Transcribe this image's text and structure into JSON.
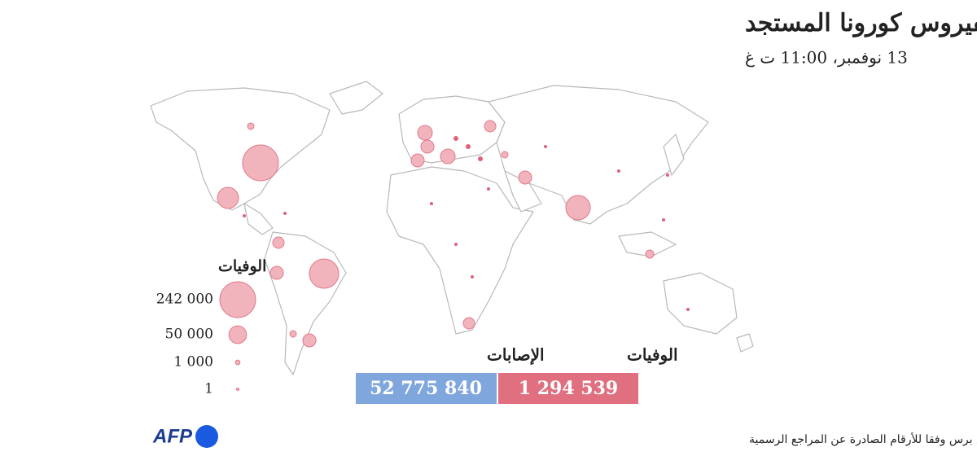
{
  "header": {
    "title": "الحصيلة العالمية لفيروس كورونا المستجد",
    "subtitle": "13 نوفمبر، 11:00 ت غ"
  },
  "legend": {
    "title": "الوفيات",
    "items": [
      {
        "value": 242000,
        "label": "242 000"
      },
      {
        "value": 50000,
        "label": "50 000"
      },
      {
        "value": 1000,
        "label": "1 000"
      },
      {
        "value": 1,
        "label": "1"
      }
    ]
  },
  "totals": {
    "deaths": {
      "label": "الوفيات",
      "value": "1 294 539"
    },
    "cases": {
      "label": "الإصابات",
      "value": "52 775 840"
    }
  },
  "footer": {
    "source": "المصدر: تعداد لفرانس برس وفقا للأرقام الصادرة عن المراجع الرسمية",
    "logo": "AFP"
  }
}
